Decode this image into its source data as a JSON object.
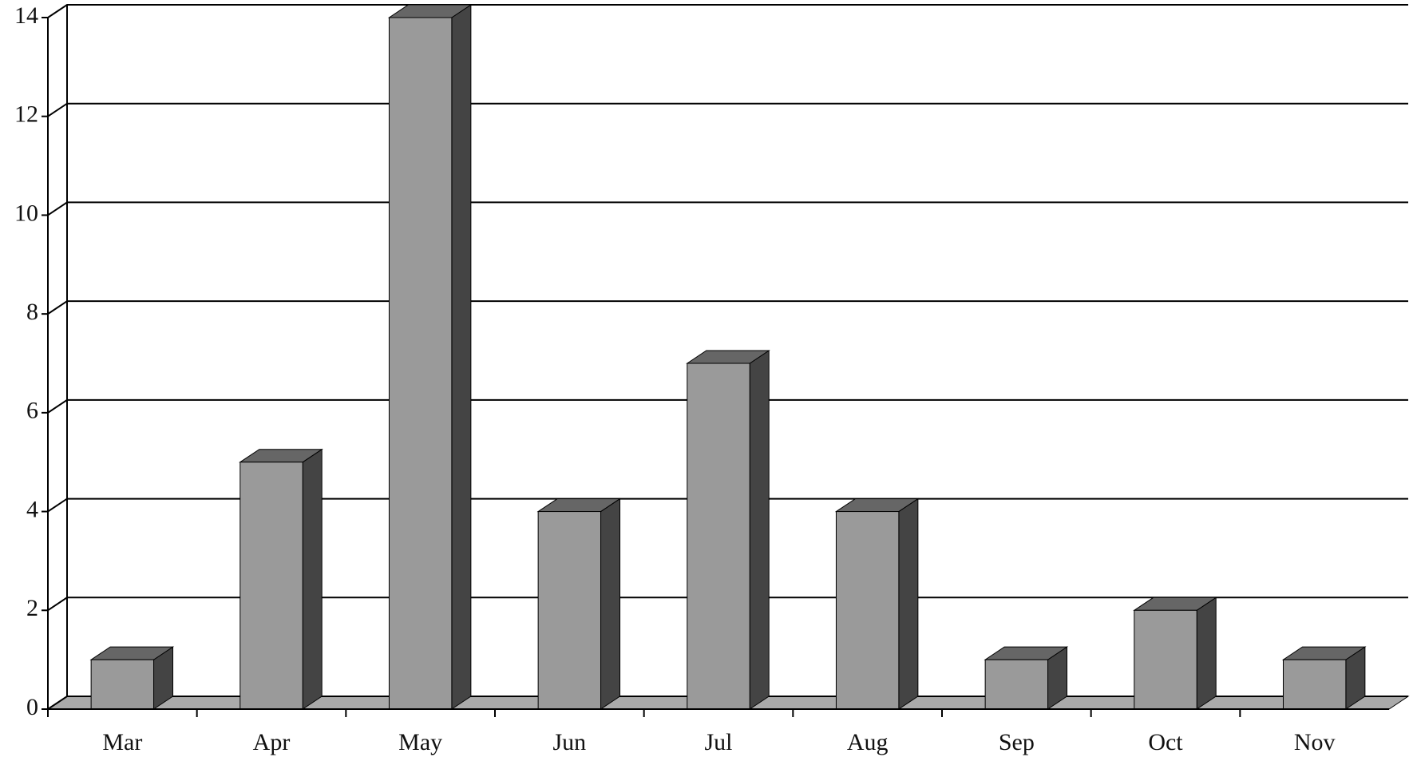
{
  "chart_data": {
    "type": "bar3d",
    "categories": [
      "Mar",
      "Apr",
      "May",
      "Jun",
      "Jul",
      "Aug",
      "Sep",
      "Oct",
      "Nov"
    ],
    "values": [
      1,
      5,
      14,
      4,
      7,
      4,
      1,
      2,
      1
    ],
    "color": "#9a9a9a",
    "ylim": [
      0,
      14
    ],
    "yticks": [
      0,
      2,
      4,
      6,
      8,
      10,
      12,
      14
    ],
    "grid": true
  }
}
